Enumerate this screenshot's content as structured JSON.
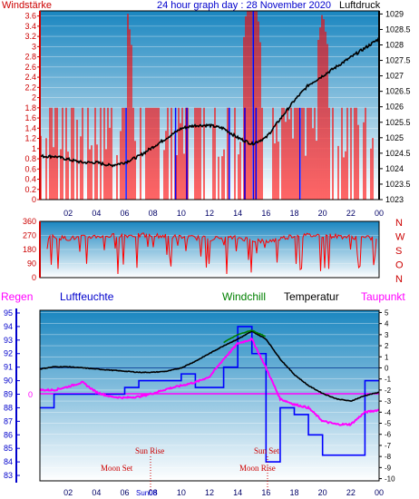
{
  "header": {
    "left_label": "Windstärke",
    "title": "24 hour graph day : 28 November 2020",
    "right_label": "Luftdruck"
  },
  "legend": {
    "regen": "Regen",
    "luftfeuchte": "Luftfeuchte",
    "windchill": "Windchill",
    "temperatur": "Temperatur",
    "taupunkt": "Taupunkt"
  },
  "annotations": {
    "sun_rise": "Sun Rise",
    "sun_set": "Sun Set",
    "moon_set": "Moon Set",
    "moon_rise": "Moon Rise",
    "sun_at_08": "Sun08"
  },
  "colors": {
    "wind_red": "#ff0000",
    "pressure_black": "#000000",
    "humidity_blue": "#0000ff",
    "taupunkt_magenta": "#ff00ff",
    "windchill_green": "#008000",
    "plot_top": "#1a86c0",
    "plot_bottom": "#ffffff",
    "axis_red": "#cc0000",
    "axis_blue": "#0000cc"
  },
  "chart_data": [
    {
      "type": "area",
      "title": "24 hour graph day : 28 November 2020",
      "x_ticks": [
        "02",
        "04",
        "06",
        "08",
        "10",
        "12",
        "14",
        "16",
        "18",
        "20",
        "22",
        "00"
      ],
      "left_axis": {
        "label": "Windstärke",
        "ticks": [
          "0",
          "0.2",
          "0.4",
          "0.6",
          "0.8",
          "1",
          "1.2",
          "1.4",
          "1.6",
          "1.8",
          "2",
          "2.2",
          "2.4",
          "2.6",
          "2.8",
          "3",
          "3.2",
          "3.4",
          "3.6"
        ],
        "ylim": [
          0,
          3.7
        ]
      },
      "right_axis": {
        "label": "Luftdruck",
        "ticks": [
          "1023",
          "1023.5",
          "1024",
          "1024.5",
          "1025",
          "1025.5",
          "1026",
          "1026.5",
          "1027",
          "1027.5",
          "1028",
          "1028.5",
          "1029"
        ],
        "ylim": [
          1023,
          1029.1
        ]
      },
      "series": [
        {
          "name": "Windstärke",
          "x": [
            0,
            1,
            2,
            3,
            4,
            5,
            6,
            6.2,
            7,
            8,
            9,
            10,
            11,
            12,
            13,
            14,
            14.6,
            15,
            15.4,
            16,
            17,
            18,
            19,
            20,
            21,
            22,
            23,
            24
          ],
          "values": [
            1.8,
            1.8,
            1.8,
            1.8,
            1.8,
            1.8,
            1.8,
            3.7,
            1.8,
            1.8,
            1.8,
            1.8,
            1.8,
            1.8,
            1.8,
            1.8,
            3.7,
            3.7,
            3.7,
            1.8,
            1.8,
            1.8,
            1.8,
            3.7,
            1.8,
            1.8,
            1.8,
            1.8
          ]
        },
        {
          "name": "Luftdruck",
          "x": [
            0,
            1,
            2,
            3,
            4,
            5,
            6,
            7,
            8,
            9,
            10,
            11,
            12,
            13,
            14,
            15,
            16,
            17,
            18,
            19,
            20,
            21,
            22,
            23,
            24
          ],
          "values": [
            1024.4,
            1024.4,
            1024.3,
            1024.2,
            1024.2,
            1024.1,
            1024.2,
            1024.4,
            1024.7,
            1025.0,
            1025.3,
            1025.4,
            1025.4,
            1025.3,
            1025.0,
            1024.8,
            1025.0,
            1025.6,
            1026.2,
            1026.7,
            1027.0,
            1027.3,
            1027.6,
            1027.9,
            1028.2
          ]
        }
      ]
    },
    {
      "type": "line",
      "left_axis": {
        "ticks": [
          "0",
          "90",
          "180",
          "270",
          "360"
        ],
        "ylim": [
          0,
          360
        ]
      },
      "right_axis": {
        "ticks": [
          "N",
          "W",
          "S",
          "O",
          "N"
        ]
      },
      "series": [
        {
          "name": "Windrichtung",
          "x": [
            0,
            2,
            4,
            6,
            8,
            10,
            12,
            14,
            16,
            18,
            20,
            22,
            24
          ],
          "values": [
            270,
            250,
            265,
            270,
            270,
            260,
            250,
            255,
            230,
            270,
            270,
            260,
            250
          ]
        }
      ]
    },
    {
      "type": "line",
      "left_axis": {
        "label": "Luftfeuchte",
        "ticks": [
          "83",
          "84",
          "85",
          "86",
          "87",
          "88",
          "89",
          "90",
          "91",
          "92",
          "93",
          "94",
          "95"
        ],
        "ylim": [
          82.6,
          95.2
        ]
      },
      "right_axis": {
        "label": "Temperatur",
        "ticks": [
          "-10",
          "-9",
          "-8",
          "-7",
          "-6",
          "-5",
          "-4",
          "-3",
          "-2",
          "-1",
          "0",
          "1",
          "2",
          "3",
          "4",
          "5"
        ],
        "ylim": [
          -10.2,
          5.2
        ]
      },
      "regen_axis": {
        "label": "Regen",
        "ticks": [
          "0"
        ]
      },
      "series": [
        {
          "name": "Temperatur",
          "x": [
            0,
            1,
            2,
            3,
            4,
            5,
            6,
            7,
            8,
            9,
            10,
            11,
            12,
            13,
            14,
            15,
            16,
            17,
            18,
            19,
            20,
            21,
            22,
            23,
            24
          ],
          "values": [
            -0.1,
            0.1,
            0.1,
            0.0,
            -0.1,
            -0.2,
            -0.3,
            -0.4,
            -0.4,
            -0.3,
            0.0,
            0.6,
            1.3,
            2.0,
            2.6,
            3.3,
            2.6,
            0.8,
            -0.6,
            -1.6,
            -2.3,
            -2.8,
            -3.0,
            -2.5,
            -2.2
          ]
        },
        {
          "name": "Windchill",
          "x": [
            13,
            14,
            15,
            16
          ],
          "values": [
            2.3,
            3.0,
            3.4,
            2.8
          ]
        },
        {
          "name": "Taupunkt",
          "x": [
            0,
            1,
            2,
            3,
            4,
            5,
            6,
            7,
            8,
            9,
            10,
            11,
            12,
            13,
            14,
            15,
            16,
            17,
            18,
            19,
            20,
            21,
            22,
            23,
            24
          ],
          "values": [
            -2.0,
            -2.0,
            -1.7,
            -1.3,
            -2.2,
            -2.6,
            -2.7,
            -2.6,
            -2.3,
            -1.9,
            -1.6,
            -1.3,
            -0.8,
            0.8,
            2.2,
            2.6,
            0.0,
            -2.8,
            -3.3,
            -3.6,
            -4.8,
            -5.1,
            -5.1,
            -4.0,
            -3.8
          ]
        },
        {
          "name": "Luftfeuchte",
          "x": [
            0,
            1,
            2,
            3,
            4,
            5,
            6,
            7,
            8,
            9,
            10,
            11,
            12,
            13,
            14,
            15,
            16,
            17,
            18,
            19,
            20,
            21,
            22,
            23,
            24
          ],
          "values": [
            88,
            89,
            89,
            89,
            89,
            89,
            89.5,
            90,
            90,
            90,
            90.5,
            89.5,
            89.5,
            91,
            94,
            92,
            84,
            88,
            87.5,
            86,
            84.5,
            84.5,
            84.5,
            90,
            90
          ]
        }
      ]
    }
  ]
}
